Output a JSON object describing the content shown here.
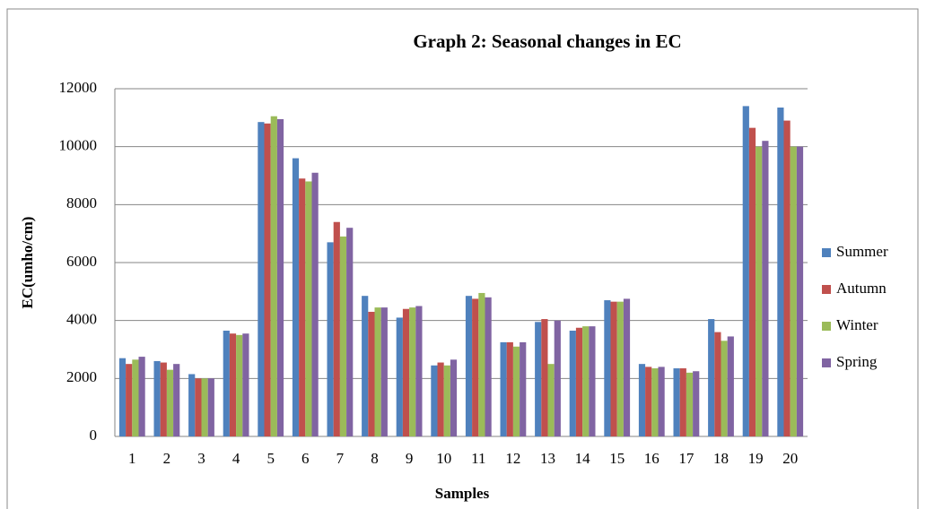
{
  "chart_data": {
    "type": "bar",
    "title": "Graph 2: Seasonal changes in EC",
    "x_label": "Samples",
    "y_label": "EC(umho/cm)",
    "categories": [
      "1",
      "2",
      "3",
      "4",
      "5",
      "6",
      "7",
      "8",
      "9",
      "10",
      "11",
      "12",
      "13",
      "14",
      "15",
      "16",
      "17",
      "18",
      "19",
      "20"
    ],
    "series": [
      {
        "name": "Summer",
        "color": "#4f81bd",
        "values": [
          2700,
          2600,
          2150,
          3650,
          10850,
          9600,
          6700,
          4850,
          4100,
          2450,
          4850,
          3250,
          3950,
          3650,
          4700,
          2500,
          2350,
          4050,
          11400,
          11350
        ]
      },
      {
        "name": "Autumn",
        "color": "#c0504d",
        "values": [
          2500,
          2550,
          2000,
          3550,
          10800,
          8900,
          7400,
          4300,
          4400,
          2550,
          4750,
          3250,
          4050,
          3750,
          4650,
          2400,
          2350,
          3600,
          10650,
          10900
        ]
      },
      {
        "name": "Winter",
        "color": "#9bbb59",
        "values": [
          2650,
          2300,
          2000,
          3500,
          11050,
          8800,
          6900,
          4450,
          4450,
          2450,
          4950,
          3100,
          2500,
          3800,
          4650,
          2350,
          2200,
          3300,
          10000,
          10000
        ]
      },
      {
        "name": "Spring",
        "color": "#8064a2",
        "values": [
          2750,
          2500,
          2000,
          3550,
          10950,
          9100,
          7200,
          4450,
          4500,
          2650,
          4800,
          3250,
          4000,
          3800,
          4750,
          2400,
          2250,
          3450,
          10200,
          10000
        ]
      }
    ],
    "ylim": [
      0,
      12000
    ],
    "yticks": [
      0,
      2000,
      4000,
      6000,
      8000,
      10000,
      12000
    ],
    "grid": true,
    "legend": "right"
  }
}
